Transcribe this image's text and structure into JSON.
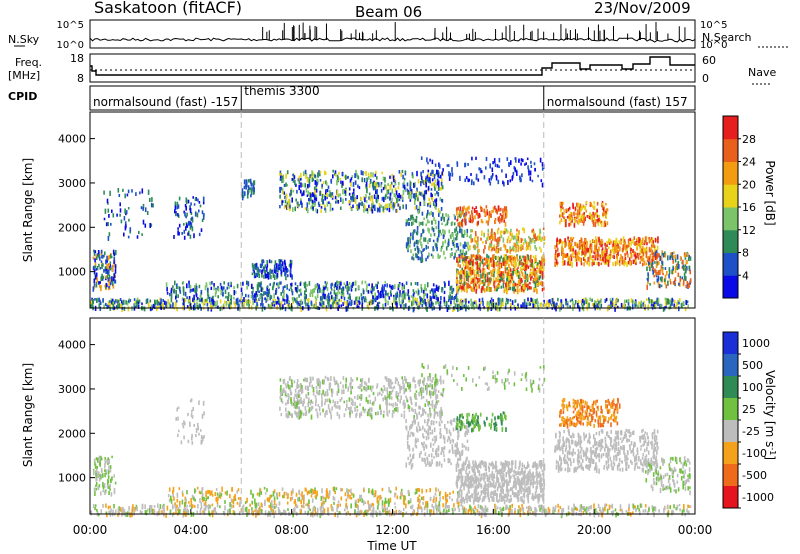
{
  "header": {
    "station": "Saskatoon (fitACF)",
    "beam": "Beam 06",
    "date": "23/Nov/2009"
  },
  "strip_labels": {
    "nsky": "N.Sky",
    "nsearch": "N.Search",
    "freq_line1": "Freq.",
    "freq_line2": "[MHz]",
    "nave": "Nave",
    "cpid": "CPID"
  },
  "strip_ticks": {
    "sky_left": [
      "10^5",
      "10^0"
    ],
    "sky_right": [
      "10^5",
      "10^0"
    ],
    "freq_left": [
      "18",
      "8"
    ],
    "nave_right": [
      "60",
      "0"
    ]
  },
  "cpid_programs": [
    {
      "label": "normalsound (fast) -157",
      "start_hour": 0,
      "end_hour": 6
    },
    {
      "label": "themis 3300",
      "start_hour": 6,
      "end_hour": 18
    },
    {
      "label": "normalsound (fast) 157",
      "start_hour": 18,
      "end_hour": 24
    }
  ],
  "time_axis": {
    "label": "Time UT",
    "ticks": [
      "00:00",
      "04:00",
      "08:00",
      "12:00",
      "16:00",
      "20:00",
      "00:00"
    ],
    "range_hours": [
      0,
      24
    ]
  },
  "chart_data": [
    {
      "type": "heatmap",
      "panel": "power",
      "ylabel": "Slant Range [km]",
      "yticks": [
        "1000",
        "2000",
        "3000",
        "4000"
      ],
      "ylim": [
        180,
        4600
      ],
      "colorbar": {
        "label": "Power [dB]",
        "ticks": [
          "4",
          "8",
          "12",
          "16",
          "20",
          "24",
          "28"
        ],
        "range": [
          0,
          30
        ],
        "colors": [
          "#0a0ae6",
          "#1e50c8",
          "#2e8b57",
          "#7cc46a",
          "#e8d31a",
          "#f39c12",
          "#e8601c",
          "#e61e1e"
        ]
      }
    },
    {
      "type": "heatmap",
      "panel": "velocity",
      "ylabel": "Slant Range [km]",
      "yticks": [
        "1000",
        "2000",
        "3000",
        "4000"
      ],
      "ylim": [
        180,
        4600
      ],
      "colorbar": {
        "label": "Velocity [m s^-1]",
        "ticks": [
          "1000",
          "500",
          "100",
          "25",
          "-25",
          "-100",
          "-500",
          "-1000"
        ],
        "colors": [
          "#1a2fd6",
          "#2a65c0",
          "#2f8a55",
          "#6fc13f",
          "#bdbdbd",
          "#f4a21b",
          "#ef6a1a",
          "#e6141e"
        ]
      }
    }
  ]
}
